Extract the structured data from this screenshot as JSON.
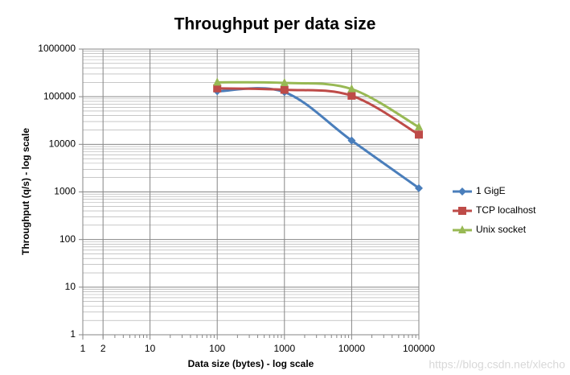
{
  "chart_data": {
    "type": "line",
    "title": "Throughput per data size",
    "x_label": "Data size (bytes) - log scale",
    "y_label": "Throughput (q/s) - log scale",
    "x": [
      100,
      1000,
      10000,
      100000
    ],
    "series": [
      {
        "name": "1 GigE",
        "color": "#4a7ebb",
        "marker": "diamond",
        "values": [
          130000,
          125000,
          12000,
          1200
        ]
      },
      {
        "name": "TCP localhost",
        "color": "#be4b48",
        "marker": "square",
        "values": [
          150000,
          140000,
          105000,
          16000
        ]
      },
      {
        "name": "Unix socket",
        "color": "#98b954",
        "marker": "triangle",
        "values": [
          200000,
          195000,
          145000,
          23000
        ]
      }
    ],
    "xlim": [
      1,
      100000
    ],
    "ylim": [
      1,
      1000000
    ],
    "xticks": [
      1,
      2,
      10,
      100,
      1000,
      10000,
      100000
    ],
    "yticks": [
      1,
      10,
      100,
      1000,
      10000,
      100000,
      1000000
    ],
    "xscale": "log",
    "yscale": "log",
    "grid": true,
    "y_minor_grid": true,
    "smooth": true,
    "legend": "right",
    "watermark": "https://blog.csdn.net/xlecho"
  }
}
